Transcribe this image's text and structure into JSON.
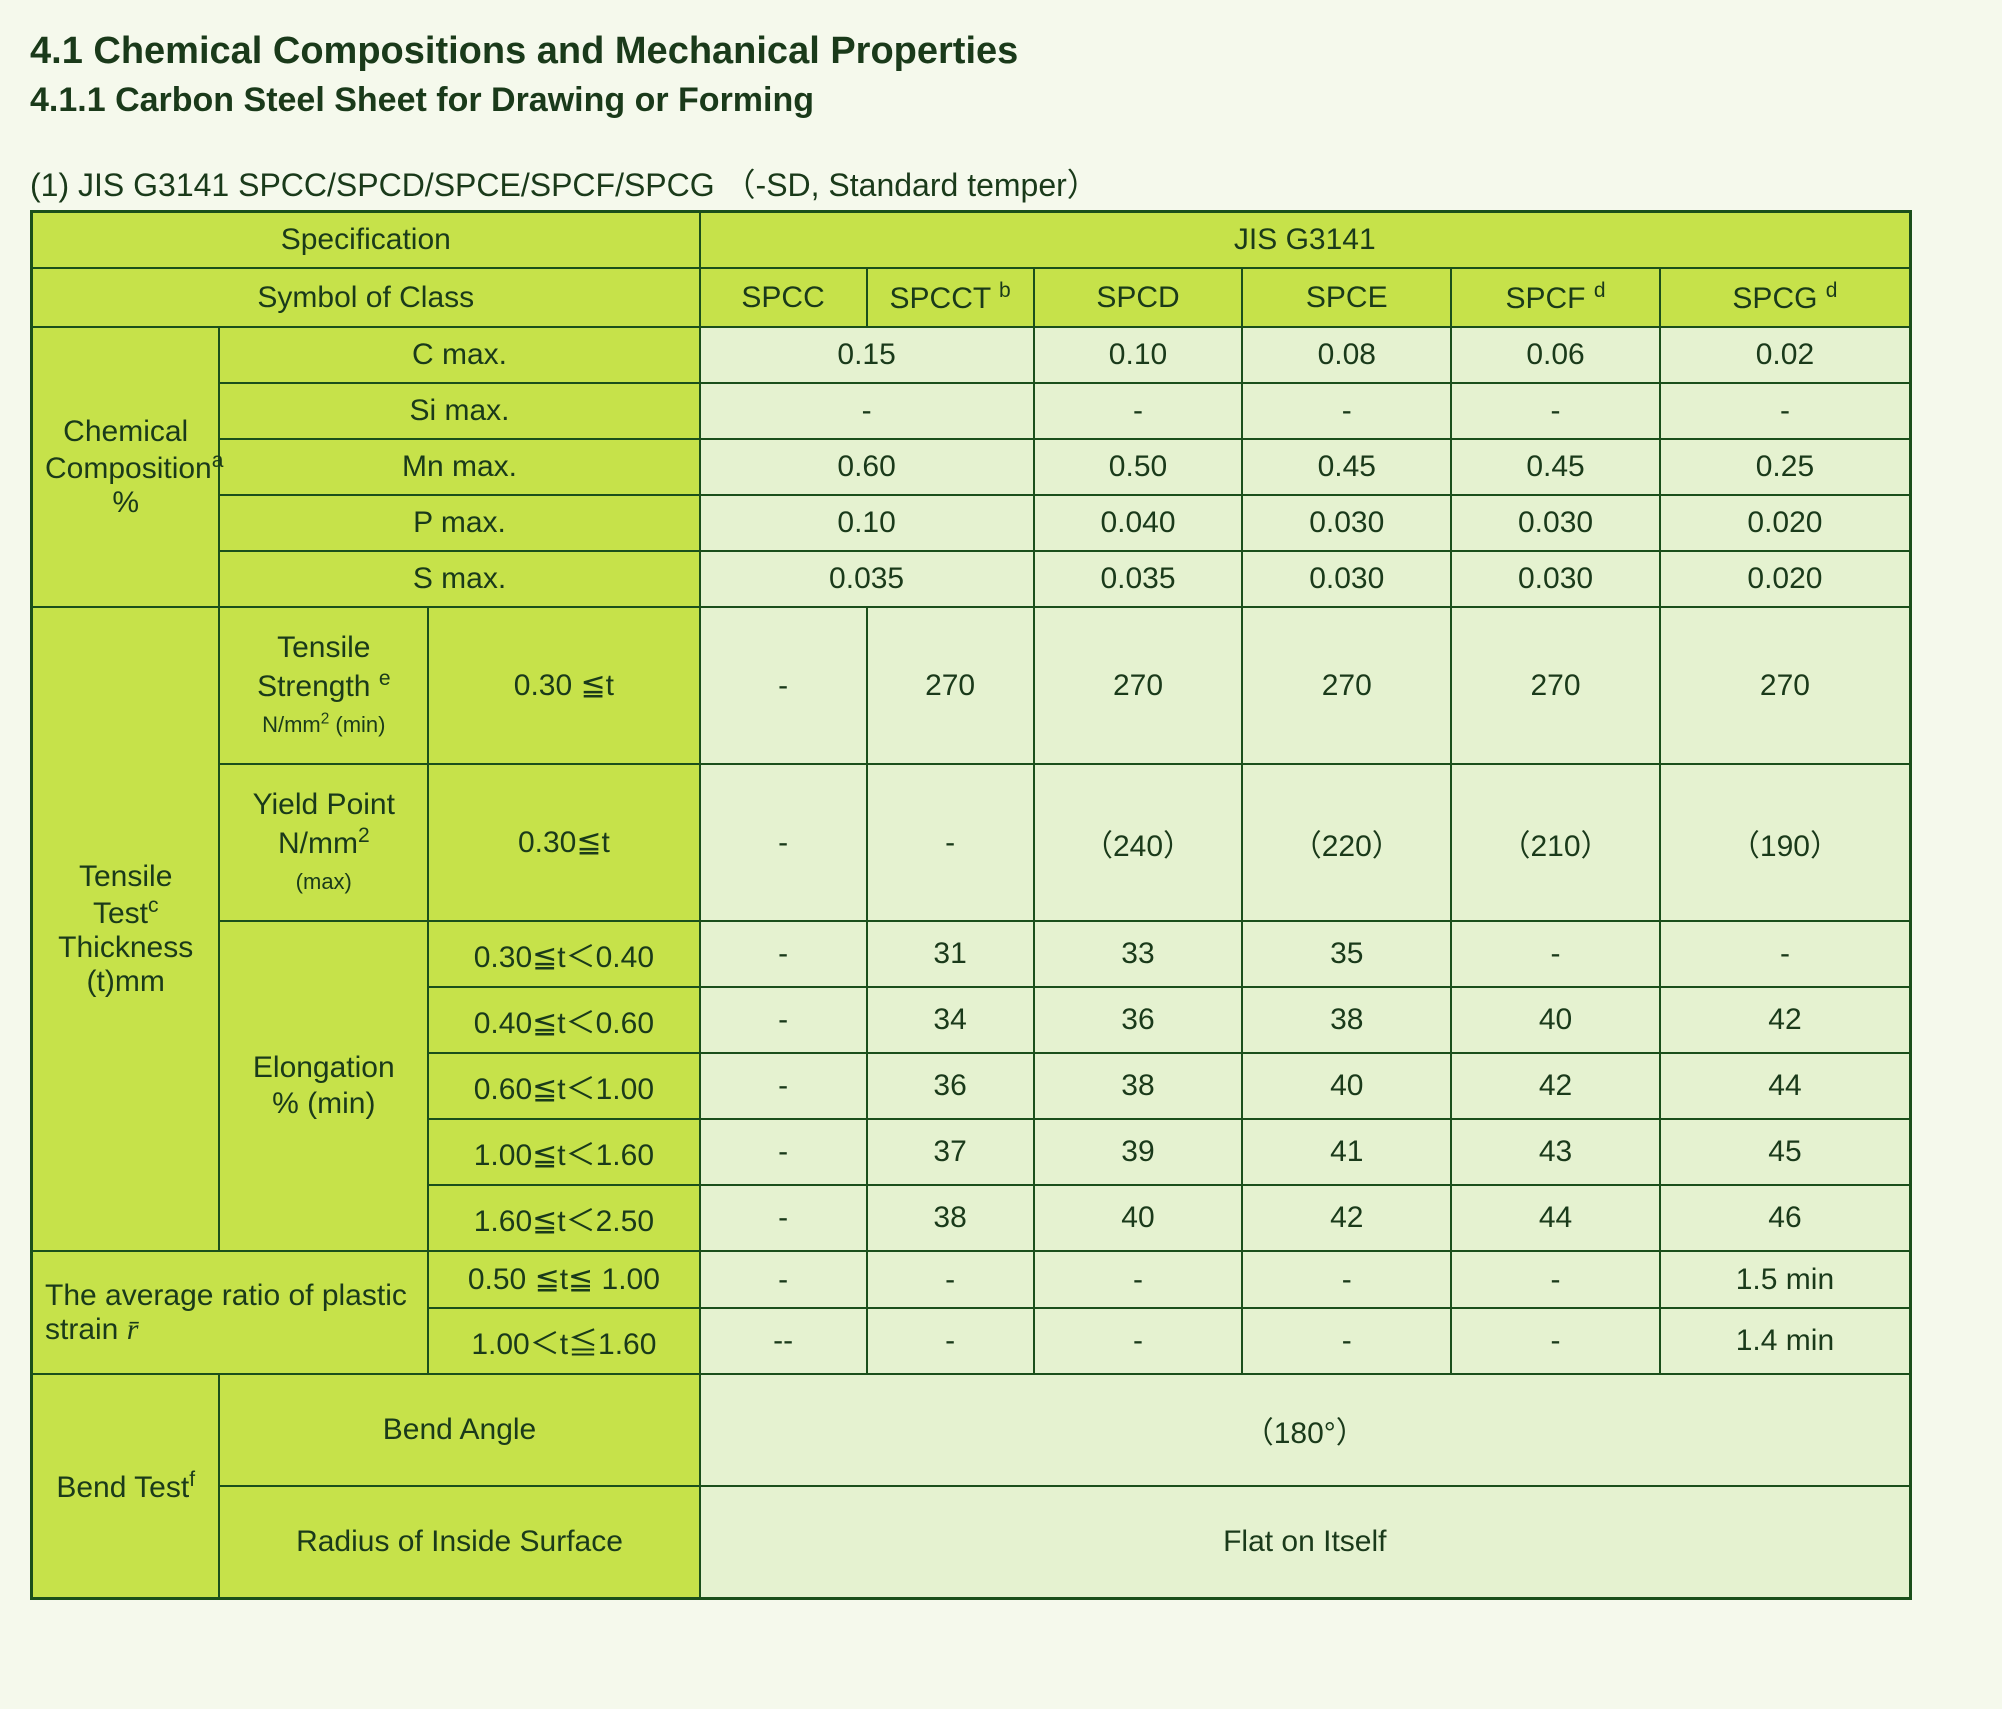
{
  "headings": {
    "h1": "4.1 Chemical Compositions and Mechanical Properties",
    "h2": "4.1.1 Carbon Steel Sheet for Drawing or Forming",
    "caption_lhs": "(1) JIS G3141 SPCC/SPCD/SPCE/SPCF/SPCG",
    "caption_rhs": "（-SD, Standard temper）"
  },
  "colors": {
    "page_bg": "#f5f9ec",
    "header_bg": "#c6e24a",
    "data_bg": "#e5f2d0",
    "border": "#1b4f1b",
    "text": "#1a3a1a"
  },
  "table": {
    "col_widths_pct": [
      9,
      10,
      13,
      8,
      8,
      10,
      10,
      10,
      12
    ],
    "top_header": {
      "spec_label": "Specification",
      "standard": "JIS G3141",
      "symbol_label": "Symbol of Class",
      "classes": [
        "SPCC",
        "SPCCT",
        "SPCD",
        "SPCE",
        "SPCF",
        "SPCG"
      ],
      "class_sup": [
        "",
        "b",
        "",
        "",
        "d",
        "d"
      ]
    },
    "chem": {
      "group_label_html": "Chemical<br>Composition<sup>a</sup><br>%",
      "rows": [
        {
          "name": "C   max.",
          "spcc_spcct": "0.15",
          "spcd": "0.10",
          "spce": "0.08",
          "spcf": "0.06",
          "spcg": "0.02"
        },
        {
          "name": "Si   max.",
          "spcc_spcct": "-",
          "spcd": "-",
          "spce": "-",
          "spcf": "-",
          "spcg": "-"
        },
        {
          "name": "Mn   max.",
          "spcc_spcct": "0.60",
          "spcd": "0.50",
          "spce": "0.45",
          "spcf": "0.45",
          "spcg": "0.25"
        },
        {
          "name": "P   max.",
          "spcc_spcct": "0.10",
          "spcd": "0.040",
          "spce": "0.030",
          "spcf": "0.030",
          "spcg": "0.020"
        },
        {
          "name": "S   max.",
          "spcc_spcct": "0.035",
          "spcd": "0.035",
          "spce": "0.030",
          "spcf": "0.030",
          "spcg": "0.020"
        }
      ]
    },
    "tensile": {
      "group_label_html": "Tensile Test<sup>c</sup><br>Thickness<br>(t)mm",
      "ts": {
        "prop_html": "Tensile<br>Strength <sup>e</sup><br><span class='small'>N/mm<sup>2</sup> (min)</span>",
        "thickness": "0.30 ≦t",
        "vals": [
          "-",
          "270",
          "270",
          "270",
          "270",
          "270"
        ]
      },
      "yp": {
        "prop_html": "Yield Point<br>N/mm<sup>2</sup><br><span class='small'>(max)</span>",
        "thickness": "0.30≦t",
        "vals": [
          "-",
          "-",
          "（240）",
          "（220）",
          "（210）",
          "（190）"
        ]
      },
      "elong": {
        "prop_html": "Elongation<br>% (min)",
        "rows": [
          {
            "thickness": "0.30≦t＜0.40",
            "vals": [
              "-",
              "31",
              "33",
              "35",
              "-",
              "-"
            ]
          },
          {
            "thickness": "0.40≦t＜0.60",
            "vals": [
              "-",
              "34",
              "36",
              "38",
              "40",
              "42"
            ]
          },
          {
            "thickness": "0.60≦t＜1.00",
            "vals": [
              "-",
              "36",
              "38",
              "40",
              "42",
              "44"
            ]
          },
          {
            "thickness": "1.00≦t＜1.60",
            "vals": [
              "-",
              "37",
              "39",
              "41",
              "43",
              "45"
            ]
          },
          {
            "thickness": "1.60≦t＜2.50",
            "vals": [
              "-",
              "38",
              "40",
              "42",
              "44",
              "46"
            ]
          }
        ]
      }
    },
    "plastic_ratio": {
      "label_html": "The average ratio of plastic<br>strain  <span class='italic-r'>r̄</span>",
      "rows": [
        {
          "thickness": "0.50 ≦t≦ 1.00",
          "vals": [
            "-",
            "-",
            "-",
            "-",
            "-",
            "1.5 min"
          ]
        },
        {
          "thickness": "1.00＜t≦1.60",
          "vals": [
            "--",
            "-",
            "-",
            "-",
            "-",
            "1.4 min"
          ]
        }
      ]
    },
    "bend": {
      "group_label_html": "Bend Test<sup>f</sup>",
      "angle_label": "Bend Angle",
      "angle_value": "（180°）",
      "radius_label": "Radius of Inside Surface",
      "radius_value": "Flat on Itself"
    }
  }
}
